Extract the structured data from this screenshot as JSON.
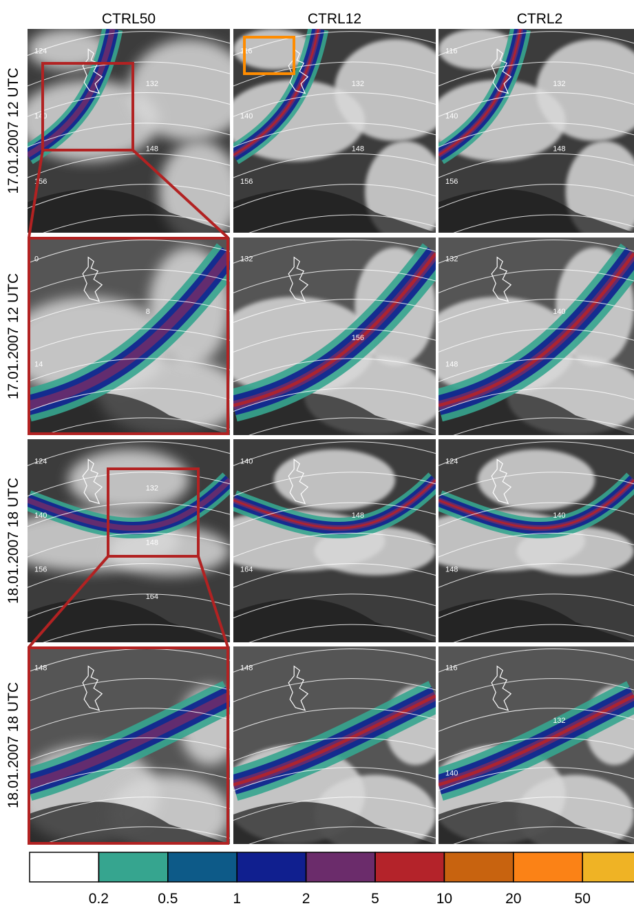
{
  "columns": [
    "CTRL50",
    "CTRL12",
    "CTRL2"
  ],
  "rows": [
    {
      "label": "17.01.2007 12 UTC",
      "panels": [
        {
          "contour_labels": [
            "124",
            "132",
            "140",
            "148",
            "156"
          ]
        },
        {
          "contour_labels": [
            "116",
            "132",
            "140",
            "148",
            "156"
          ]
        },
        {
          "contour_labels": [
            "116",
            "132",
            "140",
            "148",
            "156"
          ]
        }
      ]
    },
    {
      "label": "17.01.2007 12 UTC",
      "panels": [
        {
          "contour_labels": [
            "0",
            "8",
            "14"
          ]
        },
        {
          "contour_labels": [
            "132",
            "156"
          ]
        },
        {
          "contour_labels": [
            "132",
            "140",
            "148"
          ]
        }
      ]
    },
    {
      "label": "18.01.2007 18 UTC",
      "panels": [
        {
          "contour_labels": [
            "124",
            "132",
            "140",
            "148",
            "156",
            "164"
          ]
        },
        {
          "contour_labels": [
            "140",
            "148",
            "164"
          ]
        },
        {
          "contour_labels": [
            "124",
            "140",
            "148"
          ]
        }
      ]
    },
    {
      "label": "18.01.2007 18 UTC",
      "panels": [
        {
          "contour_labels": [
            "148"
          ]
        },
        {
          "contour_labels": [
            "148"
          ]
        },
        {
          "contour_labels": [
            "116",
            "132",
            "140"
          ]
        }
      ]
    }
  ],
  "colorbar": {
    "colors": [
      "#ffffff",
      "#36a58f",
      "#0d5a88",
      "#101f8f",
      "#6b2c6b",
      "#b4232a",
      "#c8630f",
      "#fb8216",
      "#efb325"
    ],
    "ticks": [
      0.2,
      0.5,
      1,
      2,
      5,
      10,
      20,
      50
    ]
  }
}
